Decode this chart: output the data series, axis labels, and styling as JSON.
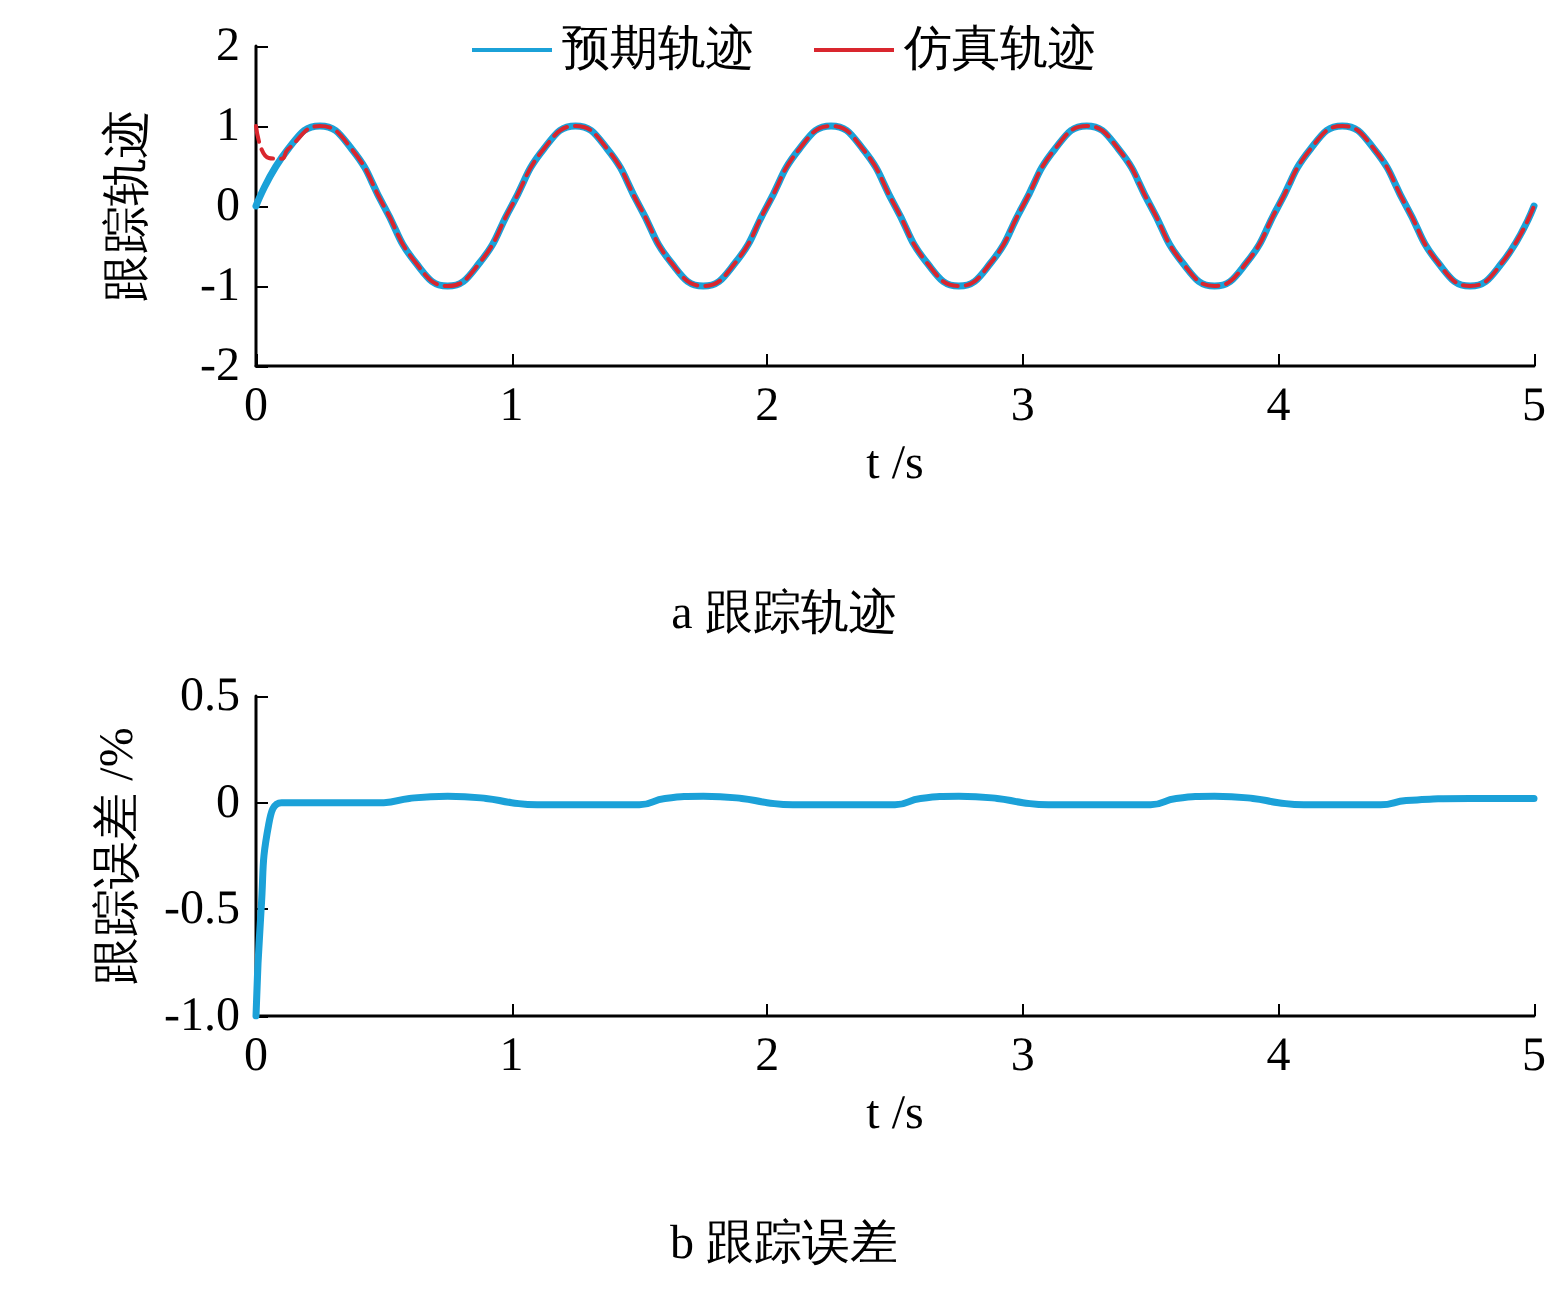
{
  "chart_data": [
    {
      "type": "line",
      "xlabel": "t /s",
      "ylabel": "跟踪轨迹",
      "annotations": [
        "a 跟踪轨迹"
      ],
      "xlim": [
        0,
        5
      ],
      "xticks": [
        0,
        1,
        2,
        3,
        4,
        5
      ],
      "ylim": [
        -2,
        2
      ],
      "yticks": [
        -2,
        -1,
        0,
        1,
        2
      ],
      "grid": false,
      "legend": "top",
      "series": [
        {
          "name": "预期轨迹",
          "color": "#1ba1d8",
          "line_style": "solid",
          "x": [
            0,
            0.125,
            0.25,
            0.375,
            0.5,
            0.625,
            0.75,
            0.875,
            1,
            1.125,
            1.25,
            1.375,
            1.5,
            1.625,
            1.75,
            1.875,
            2,
            2.125,
            2.25,
            2.375,
            2.5,
            2.625,
            2.75,
            2.875,
            3,
            3.125,
            3.25,
            3.375,
            3.5,
            3.625,
            3.75,
            3.875,
            4,
            4.125,
            4.25,
            4.375,
            4.5,
            4.625,
            4.75,
            4.875,
            5
          ],
          "values": [
            0,
            0.71,
            1,
            0.71,
            0,
            -0.71,
            -1,
            -0.71,
            0,
            0.71,
            1,
            0.71,
            0,
            -0.71,
            -1,
            -0.71,
            0,
            0.71,
            1,
            0.71,
            0,
            -0.71,
            -1,
            -0.71,
            0,
            0.71,
            1,
            0.71,
            0,
            -0.71,
            -1,
            -0.71,
            0,
            0.71,
            1,
            0.71,
            0,
            -0.71,
            -1,
            -0.71,
            0
          ]
        },
        {
          "name": "仿真轨迹",
          "color": "#d9262e",
          "line_style": "dashed",
          "x": [
            0,
            0.05,
            0.1,
            0.125,
            0.25,
            0.375,
            0.5,
            0.625,
            0.75,
            0.875,
            1,
            1.125,
            1.25,
            1.375,
            1.5,
            1.625,
            1.75,
            1.875,
            2,
            2.125,
            2.25,
            2.375,
            2.5,
            2.625,
            2.75,
            2.875,
            3,
            3.125,
            3.25,
            3.375,
            3.5,
            3.625,
            3.75,
            3.875,
            4,
            4.125,
            4.25,
            4.375,
            4.5,
            4.625,
            4.75,
            4.875,
            5
          ],
          "values": [
            1,
            0.6,
            0.59,
            0.71,
            1,
            0.71,
            0,
            -0.71,
            -1,
            -0.71,
            0,
            0.71,
            1,
            0.71,
            0,
            -0.71,
            -1,
            -0.71,
            0,
            0.71,
            1,
            0.71,
            0,
            -0.71,
            -1,
            -0.71,
            0,
            0.71,
            1,
            0.71,
            0,
            -0.71,
            -1,
            -0.71,
            0,
            0.71,
            1,
            0.71,
            0,
            -0.71,
            -1,
            -0.71,
            0
          ]
        }
      ]
    },
    {
      "type": "line",
      "xlabel": "t /s",
      "ylabel": "跟踪误差 /%",
      "annotations": [
        "b 跟踪误差"
      ],
      "xlim": [
        0,
        5
      ],
      "xticks": [
        0,
        1,
        2,
        3,
        4,
        5
      ],
      "ylim": [
        -1,
        0.5
      ],
      "yticks": [
        {
          "value": -1,
          "label": "-1.0"
        },
        -0.5,
        0,
        0.5
      ],
      "grid": false,
      "series": [
        {
          "color": "#1ba1d8",
          "x": [
            0,
            0.02,
            0.05,
            0.1,
            0.15,
            0.5,
            0.6,
            0.75,
            0.9,
            1,
            1.1,
            1.5,
            1.6,
            1.75,
            1.9,
            2,
            2.1,
            2.5,
            2.6,
            2.75,
            2.9,
            3,
            3.1,
            3.5,
            3.6,
            3.75,
            3.9,
            4,
            4.1,
            4.4,
            4.5,
            4.75,
            5
          ],
          "values": [
            -1,
            -0.5,
            -0.1,
            0,
            0,
            0,
            0.02,
            0.03,
            0.02,
            0,
            -0.01,
            -0.01,
            0.02,
            0.03,
            0.02,
            0,
            -0.01,
            -0.01,
            0.02,
            0.03,
            0.02,
            0,
            -0.01,
            -0.01,
            0.02,
            0.03,
            0.02,
            0,
            -0.01,
            -0.01,
            0.01,
            0.02,
            0.02
          ]
        }
      ]
    }
  ]
}
